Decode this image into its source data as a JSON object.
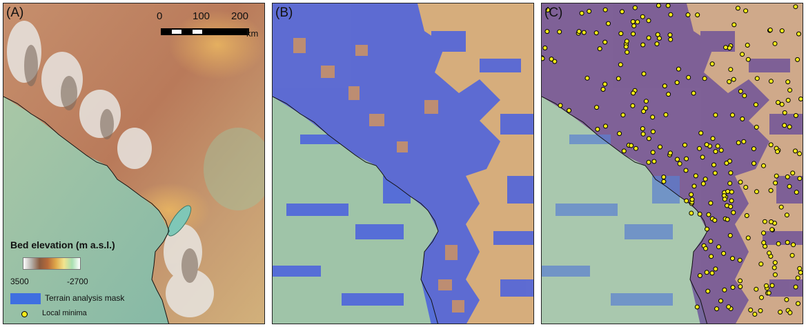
{
  "panels": [
    {
      "label": "(A)"
    },
    {
      "label": "(B)"
    },
    {
      "label": "(C)"
    }
  ],
  "scale_bar": {
    "ticks": [
      "0",
      "100",
      "200"
    ],
    "unit": "km"
  },
  "legend": {
    "title": "Bed elevation (m a.s.l.)",
    "ramp_max": "3500",
    "ramp_min": "-2700",
    "mask_label": "Terrain analysis mask",
    "minima_label": "Local minima"
  },
  "colors": {
    "water": "#8fc2b4",
    "lowland": "#c9bd82",
    "upland": "#b06f52",
    "mountain": "#d8d4cf",
    "mask": "#3f6fe0",
    "minima": "#f5ea1a",
    "coastline": "#111111"
  }
}
